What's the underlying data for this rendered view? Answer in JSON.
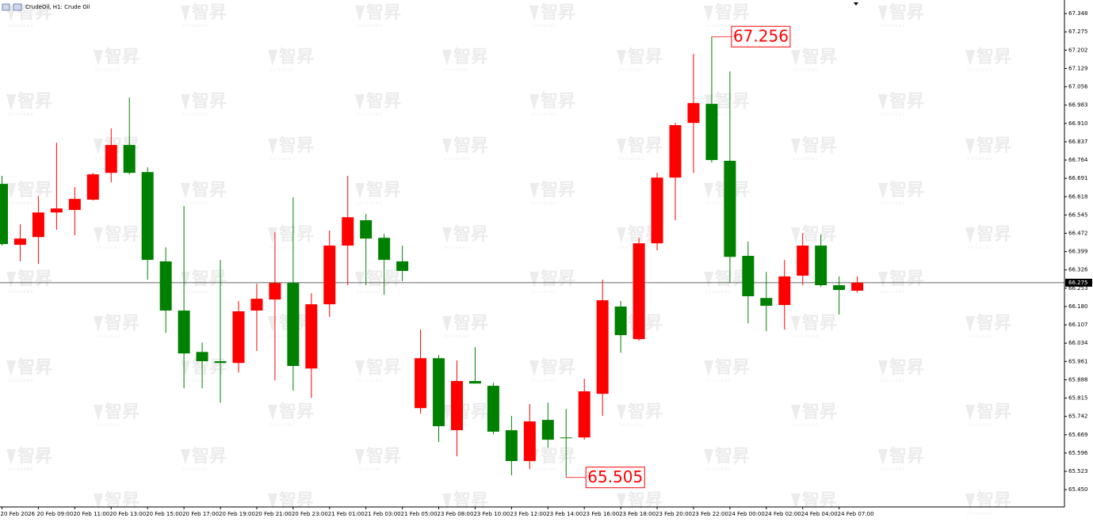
{
  "chart_data": {
    "type": "candlestick",
    "title": "CrudeOil, H1:  Crude Oil",
    "watermark": "智昇",
    "watermark_sub": "ZHISHENG",
    "categories": [
      "20 Feb 2026",
      null,
      "20 Feb 09:00",
      null,
      "20 Feb 11:00",
      null,
      "20 Feb 13:00",
      null,
      "20 Feb 15:00",
      null,
      "20 Feb 17:00",
      null,
      "20 Feb 19:00",
      null,
      "20 Feb 21:00",
      null,
      "20 Feb 23:00",
      null,
      "21 Feb 01:00",
      null,
      "21 Feb 03:00",
      null,
      "21 Feb 05:00",
      null,
      "23 Feb 08:00",
      null,
      "23 Feb 10:00",
      null,
      "23 Feb 12:00",
      null,
      "23 Feb 14:00",
      null,
      "23 Feb 16:00",
      null,
      "23 Feb 18:00",
      null,
      "23 Feb 20:00",
      null,
      "23 Feb 22:00",
      null,
      "24 Feb 00:00",
      null,
      "24 Feb 02:00",
      null,
      "24 Feb 04:00",
      null,
      "24 Feb 07:00",
      null
    ],
    "open": [
      66.669,
      66.426,
      66.457,
      66.555,
      66.565,
      66.606,
      66.713,
      66.824,
      66.716,
      66.36,
      66.164,
      65.999,
      65.962,
      65.955,
      66.164,
      66.208,
      66.274,
      65.933,
      66.189,
      66.423,
      66.524,
      66.454,
      66.36,
      65.775,
      65.974,
      65.687,
      65.883,
      65.864,
      65.687,
      65.564,
      65.728,
      65.658,
      65.658,
      65.832,
      66.18,
      66.05,
      66.432,
      66.694,
      66.912,
      66.988,
      66.761,
      66.382,
      66.214,
      66.186,
      66.303,
      66.423,
      66.265,
      66.243
    ],
    "high": [
      66.701,
      66.508,
      66.619,
      66.833,
      66.656,
      66.713,
      66.89,
      67.013,
      66.735,
      66.416,
      66.581,
      66.037,
      66.366,
      66.202,
      66.271,
      66.476,
      66.615,
      66.233,
      66.483,
      66.701,
      66.549,
      66.47,
      66.423,
      66.088,
      65.987,
      65.965,
      66.018,
      65.876,
      65.744,
      65.791,
      65.797,
      65.772,
      65.892,
      66.287,
      66.202,
      66.454,
      66.713,
      66.912,
      67.187,
      67.256,
      67.117,
      66.439,
      66.318,
      66.366,
      66.473,
      66.467,
      66.3,
      66.3
    ],
    "low": [
      66.423,
      66.36,
      66.35,
      66.486,
      66.464,
      66.603,
      66.675,
      66.707,
      66.287,
      66.075,
      65.854,
      65.854,
      65.797,
      65.917,
      66.003,
      65.886,
      65.845,
      65.816,
      66.138,
      66.265,
      66.265,
      66.227,
      66.281,
      65.753,
      65.64,
      65.583,
      65.873,
      65.671,
      65.507,
      65.532,
      65.617,
      65.505,
      65.649,
      65.744,
      65.996,
      66.044,
      66.404,
      66.524,
      66.713,
      66.754,
      66.277,
      66.113,
      66.082,
      66.088,
      66.265,
      66.258,
      66.148,
      66.236
    ],
    "close": [
      66.429,
      66.451,
      66.555,
      66.571,
      66.609,
      66.707,
      66.824,
      66.713,
      66.366,
      66.164,
      65.993,
      65.962,
      65.955,
      66.161,
      66.211,
      66.274,
      65.943,
      66.189,
      66.423,
      66.536,
      66.451,
      66.366,
      66.322,
      65.974,
      65.703,
      65.883,
      65.873,
      65.681,
      65.564,
      65.722,
      65.649,
      65.655,
      65.842,
      66.205,
      66.066,
      66.432,
      66.694,
      66.903,
      66.991,
      66.764,
      66.378,
      66.221,
      66.183,
      66.3,
      66.423,
      66.265,
      66.246,
      66.275
    ],
    "up_color": "#ff0000",
    "down_color": "#008000",
    "current_price": 66.275,
    "annotations": [
      67.256,
      65.505
    ],
    "annotation_color": "#ff0000",
    "ylim": [
      65.381,
      67.402
    ],
    "yticks": [
      67.348,
      67.275,
      67.202,
      67.129,
      67.056,
      66.983,
      {
        "value": 66.91,
        "label": "66.910"
      },
      66.837,
      66.764,
      66.691,
      66.618,
      66.545,
      66.472,
      66.399,
      66.326,
      66.253,
      {
        "value": 66.18,
        "label": "66.180"
      },
      66.107,
      66.034,
      65.961,
      65.888,
      65.815,
      65.742,
      65.669,
      65.596,
      65.523,
      {
        "value": 65.45,
        "label": "65.450"
      }
    ]
  }
}
